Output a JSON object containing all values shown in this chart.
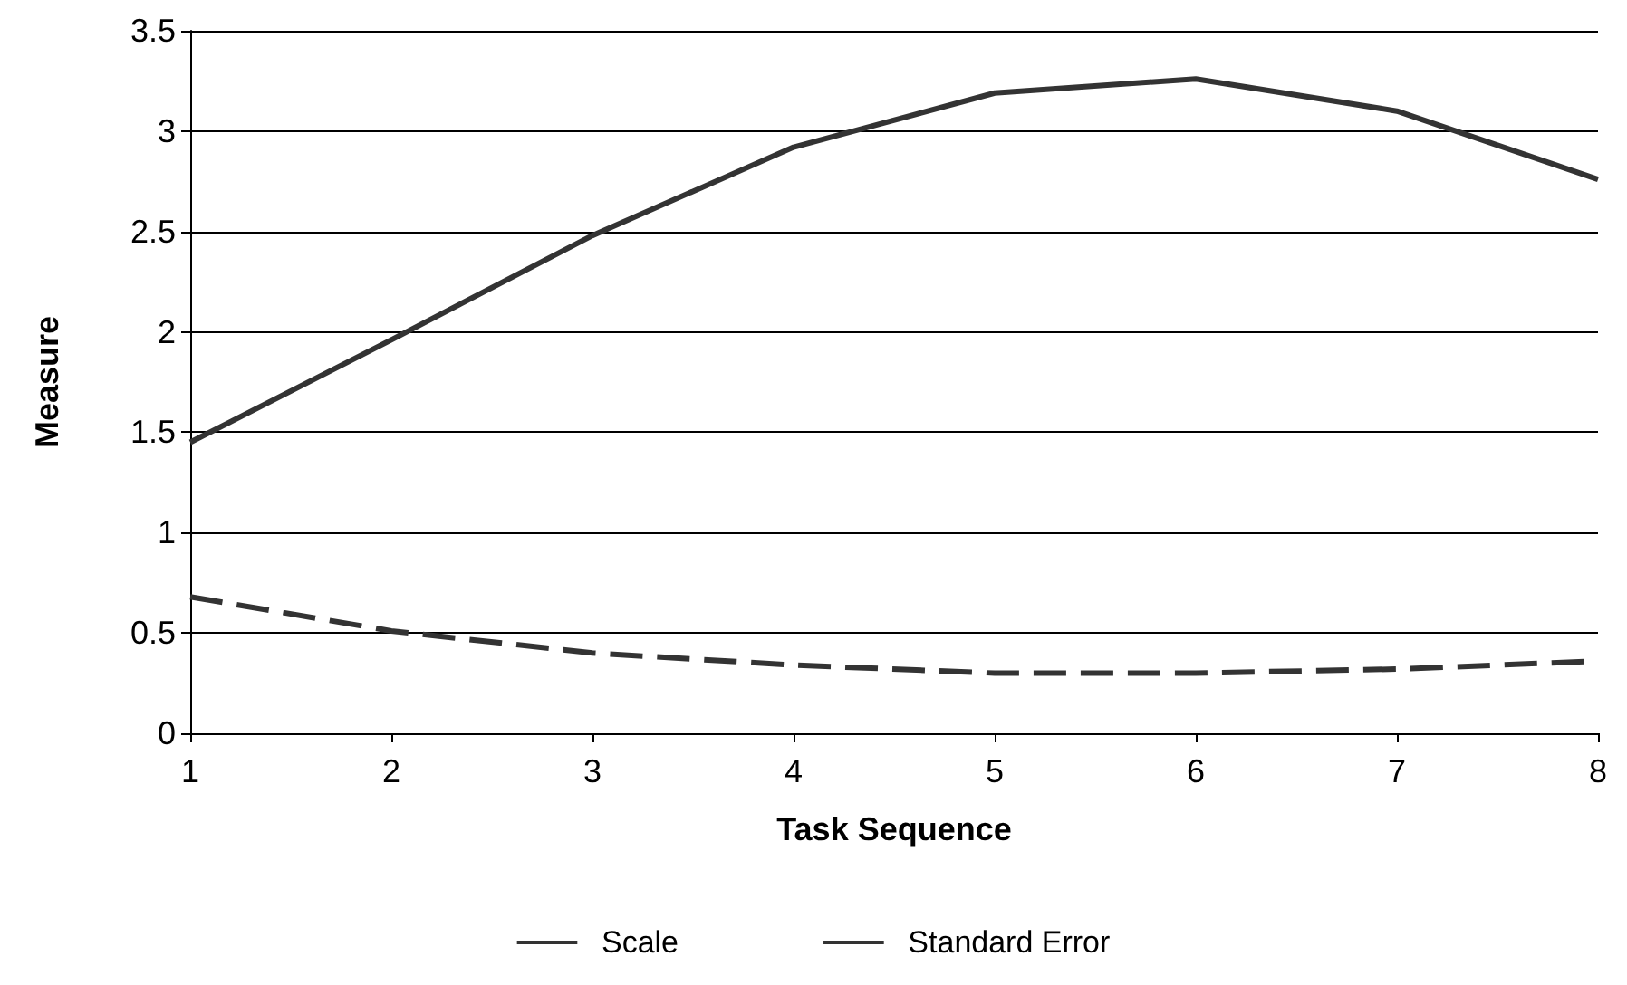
{
  "chart_data": {
    "type": "line",
    "xlabel": "Task Sequence",
    "ylabel": "Measure",
    "x": [
      1,
      2,
      3,
      4,
      5,
      6,
      7,
      8
    ],
    "series": [
      {
        "name": "Scale",
        "color": "#333333",
        "line_style": "solid",
        "values": [
          1.45,
          1.96,
          2.48,
          2.92,
          3.19,
          3.26,
          3.1,
          2.76
        ]
      },
      {
        "name": "Standard Error",
        "color": "#333333",
        "line_style": "dashed",
        "values": [
          0.68,
          0.51,
          0.4,
          0.34,
          0.3,
          0.3,
          0.32,
          0.36
        ]
      }
    ],
    "xlim": [
      1,
      8
    ],
    "xticks": [
      1,
      2,
      3,
      4,
      5,
      6,
      7,
      8
    ],
    "ylim": [
      0,
      3.5
    ],
    "yticks": [
      0,
      0.5,
      1,
      1.5,
      2,
      2.5,
      3,
      3.5
    ],
    "grid": "y",
    "legend": "bottom",
    "marker": "none"
  }
}
